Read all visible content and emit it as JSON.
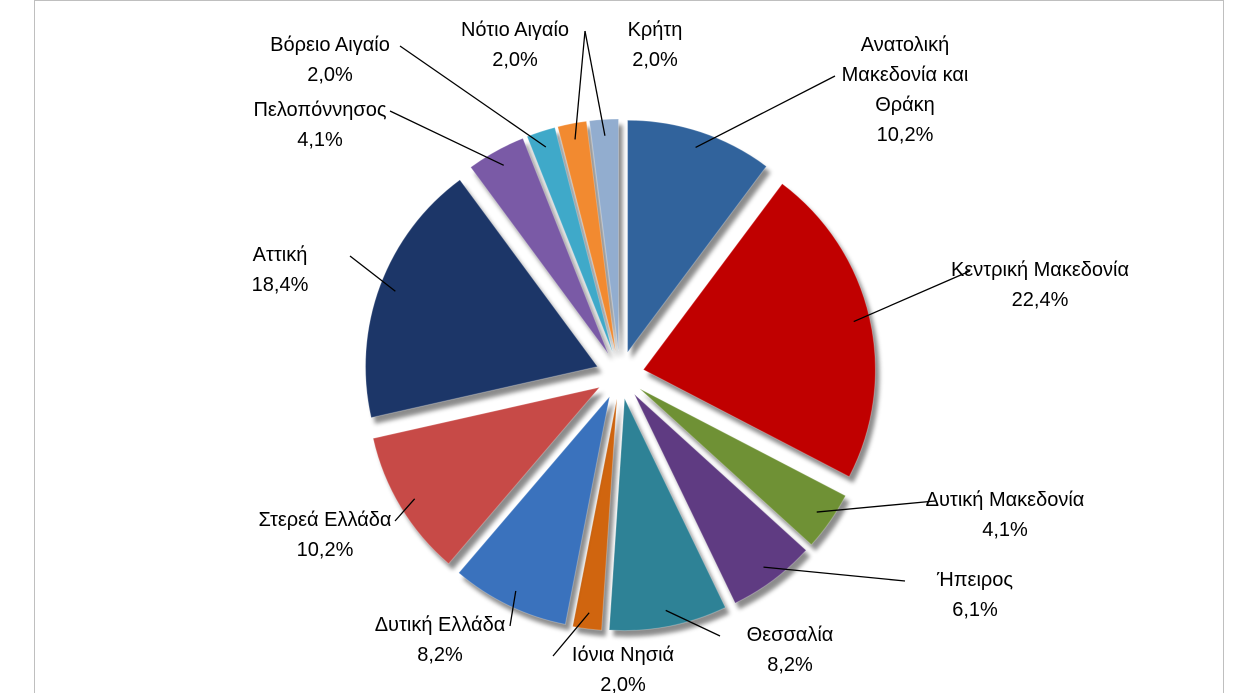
{
  "chart_data": {
    "type": "pie",
    "categories": [
      "Ανατολική Μακεδονία και Θράκη",
      "Κεντρική Μακεδονία",
      "Δυτική Μακεδονία",
      "Ήπειρος",
      "Θεσσαλία",
      "Ιόνια Νησιά",
      "Δυτική Ελλάδα",
      "Στερεά Ελλάδα",
      "Αττική",
      "Πελοπόννησος",
      "Βόρειο Αιγαίο",
      "Νότιο Αιγαίο",
      "Κρήτη"
    ],
    "values": [
      10.2,
      22.4,
      4.1,
      6.1,
      8.2,
      2.0,
      8.2,
      10.2,
      18.4,
      4.1,
      2.0,
      2.0,
      2.0
    ],
    "value_labels": [
      "10,2%",
      "22,4%",
      "4,1%",
      "6,1%",
      "8,2%",
      "2,0%",
      "8,2%",
      "10,2%",
      "18,4%",
      "4,1%",
      "2,0%",
      "2,0%",
      "2,0%"
    ],
    "colors": [
      "#31639c",
      "#c00000",
      "#6f9135",
      "#5f3b82",
      "#2e8296",
      "#d0650f",
      "#3a72bd",
      "#c74a47",
      "#1c3668",
      "#7a5aa6",
      "#3fa9c9",
      "#f28a30",
      "#92adcf"
    ]
  }
}
